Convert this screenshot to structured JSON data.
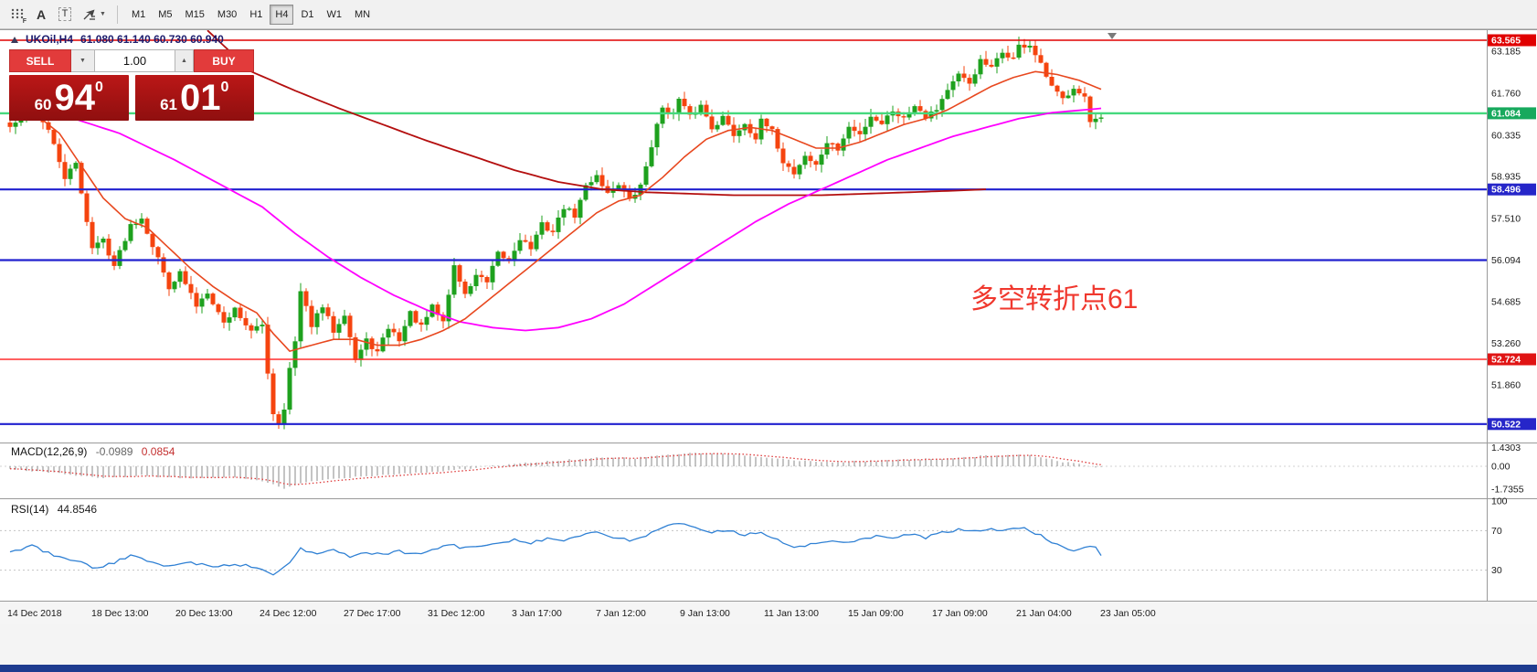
{
  "toolbar": {
    "timeframes": [
      "M1",
      "M5",
      "M15",
      "M30",
      "H1",
      "H4",
      "D1",
      "W1",
      "MN"
    ],
    "selected_timeframe": "H4",
    "icon_a": "A",
    "icon_t": "T",
    "icon_f": "F"
  },
  "chart": {
    "title_symbol": "UKOil,H4",
    "title_ohlc": "61.080 61.140 60.730 60.940",
    "annotation_text": "多空转折点61",
    "annotation_color": "#f0382e"
  },
  "quote_panel": {
    "sell_label": "SELL",
    "buy_label": "BUY",
    "volume": "1.00",
    "sell_price_small": "60",
    "sell_price_big": "94",
    "sell_price_sup": "0",
    "buy_price_small": "61",
    "buy_price_big": "01",
    "buy_price_sup": "0"
  },
  "hlines": [
    {
      "price": 63.565,
      "label": "63.565",
      "color": "#e00000",
      "width": 1.6,
      "badge": "#e00000"
    },
    {
      "price": 61.084,
      "label": "61.084",
      "color": "#45d97e",
      "width": 2.4,
      "badge": "#17a95d"
    },
    {
      "price": 58.496,
      "label": "58.496",
      "color": "#2121cf",
      "width": 2.2,
      "badge": "#2626c9"
    },
    {
      "price": 56.094,
      "label": "56.094",
      "color": "#2121cf",
      "width": 2.2,
      "badge": null
    },
    {
      "price": 52.724,
      "label": "52.724",
      "color": "#ff2d2d",
      "width": 1.4,
      "badge": "#e01414"
    },
    {
      "price": 50.522,
      "label": "50.522",
      "color": "#2121cf",
      "width": 2.2,
      "badge": "#2626c9"
    }
  ],
  "price_axis": {
    "labels": [
      [
        63.185,
        "63.185"
      ],
      [
        61.76,
        "61.760"
      ],
      [
        60.335,
        "60.335"
      ],
      [
        58.935,
        "58.935"
      ],
      [
        57.51,
        "57.510"
      ],
      [
        56.094,
        "56.094"
      ],
      [
        54.685,
        "54.685"
      ],
      [
        53.26,
        "53.260"
      ],
      [
        51.86,
        "51.860"
      ]
    ]
  },
  "chart_data": {
    "type": "candlestick",
    "symbol": "UKOil",
    "timeframe": "H4",
    "last_ohlc": {
      "open": 61.08,
      "high": 61.14,
      "low": 60.73,
      "close": 60.94
    },
    "bars": 200,
    "colors": {
      "bull": "#1ea11e",
      "bear": "#f5440f",
      "ma_fast": "#e8481f",
      "ma_med": "#ff00ff",
      "ma_slow": "#b40f0f"
    },
    "price_path": [
      [
        0,
        60.6
      ],
      [
        2,
        60.95
      ],
      [
        5,
        61.15
      ],
      [
        7,
        60.5
      ],
      [
        10,
        58.9
      ],
      [
        12,
        59.35
      ],
      [
        15,
        56.5
      ],
      [
        17,
        56.8
      ],
      [
        19,
        55.9
      ],
      [
        22,
        57.3
      ],
      [
        24,
        57.55
      ],
      [
        26,
        56.6
      ],
      [
        29,
        55.2
      ],
      [
        31,
        55.65
      ],
      [
        34,
        54.55
      ],
      [
        36,
        55.05
      ],
      [
        39,
        53.95
      ],
      [
        41,
        54.45
      ],
      [
        44,
        53.65
      ],
      [
        46,
        53.9
      ],
      [
        47,
        52.3
      ],
      [
        48,
        50.9
      ],
      [
        49,
        50.55
      ],
      [
        50,
        51.1
      ],
      [
        51,
        52.4
      ],
      [
        52,
        53.3
      ],
      [
        53,
        55.0
      ],
      [
        55,
        53.9
      ],
      [
        57,
        54.5
      ],
      [
        59,
        53.7
      ],
      [
        61,
        54.3
      ],
      [
        63,
        52.7
      ],
      [
        65,
        53.35
      ],
      [
        67,
        52.95
      ],
      [
        69,
        53.8
      ],
      [
        71,
        53.4
      ],
      [
        73,
        54.3
      ],
      [
        75,
        53.8
      ],
      [
        77,
        54.5
      ],
      [
        79,
        54.0
      ],
      [
        81,
        55.9
      ],
      [
        83,
        54.9
      ],
      [
        85,
        55.6
      ],
      [
        87,
        55.3
      ],
      [
        89,
        56.3
      ],
      [
        91,
        56.05
      ],
      [
        93,
        56.85
      ],
      [
        95,
        56.5
      ],
      [
        97,
        57.3
      ],
      [
        99,
        57.05
      ],
      [
        101,
        57.9
      ],
      [
        103,
        57.6
      ],
      [
        105,
        58.6
      ],
      [
        107,
        59.0
      ],
      [
        109,
        58.35
      ],
      [
        111,
        58.7
      ],
      [
        113,
        58.1
      ],
      [
        115,
        58.6
      ],
      [
        117,
        60.0
      ],
      [
        119,
        61.3
      ],
      [
        121,
        61.05
      ],
      [
        122,
        61.55
      ],
      [
        124,
        60.95
      ],
      [
        126,
        61.35
      ],
      [
        128,
        60.6
      ],
      [
        130,
        60.95
      ],
      [
        132,
        60.35
      ],
      [
        134,
        60.75
      ],
      [
        136,
        60.25
      ],
      [
        137,
        60.8
      ],
      [
        139,
        60.45
      ],
      [
        141,
        59.45
      ],
      [
        143,
        59.05
      ],
      [
        145,
        59.65
      ],
      [
        147,
        59.3
      ],
      [
        149,
        60.1
      ],
      [
        151,
        59.85
      ],
      [
        153,
        60.6
      ],
      [
        155,
        60.35
      ],
      [
        157,
        61.0
      ],
      [
        159,
        60.75
      ],
      [
        161,
        61.2
      ],
      [
        163,
        60.9
      ],
      [
        165,
        61.4
      ],
      [
        167,
        61.0
      ],
      [
        169,
        61.25
      ],
      [
        171,
        61.9
      ],
      [
        173,
        62.35
      ],
      [
        175,
        62.1
      ],
      [
        177,
        62.85
      ],
      [
        179,
        62.6
      ],
      [
        181,
        63.15
      ],
      [
        183,
        62.95
      ],
      [
        184,
        63.35
      ],
      [
        186,
        63.4
      ],
      [
        188,
        62.7
      ],
      [
        190,
        61.95
      ],
      [
        192,
        61.55
      ],
      [
        194,
        62.0
      ],
      [
        196,
        61.65
      ],
      [
        197,
        60.75
      ],
      [
        199,
        60.94
      ]
    ],
    "ma_fast": [
      [
        0,
        61.3
      ],
      [
        5,
        61.0
      ],
      [
        9,
        60.4
      ],
      [
        13,
        59.3
      ],
      [
        17,
        58.2
      ],
      [
        21,
        57.5
      ],
      [
        25,
        57.2
      ],
      [
        29,
        56.5
      ],
      [
        33,
        55.8
      ],
      [
        37,
        55.2
      ],
      [
        41,
        54.7
      ],
      [
        45,
        54.3
      ],
      [
        48,
        53.6
      ],
      [
        51,
        53.0
      ],
      [
        55,
        53.2
      ],
      [
        59,
        53.4
      ],
      [
        63,
        53.4
      ],
      [
        67,
        53.2
      ],
      [
        71,
        53.2
      ],
      [
        75,
        53.4
      ],
      [
        79,
        53.7
      ],
      [
        83,
        54.1
      ],
      [
        87,
        54.7
      ],
      [
        91,
        55.3
      ],
      [
        95,
        55.9
      ],
      [
        99,
        56.5
      ],
      [
        103,
        57.1
      ],
      [
        107,
        57.7
      ],
      [
        111,
        58.1
      ],
      [
        115,
        58.3
      ],
      [
        119,
        58.9
      ],
      [
        123,
        59.6
      ],
      [
        127,
        60.2
      ],
      [
        131,
        60.5
      ],
      [
        135,
        60.6
      ],
      [
        139,
        60.5
      ],
      [
        143,
        60.2
      ],
      [
        147,
        59.9
      ],
      [
        151,
        59.9
      ],
      [
        155,
        60.1
      ],
      [
        159,
        60.4
      ],
      [
        163,
        60.7
      ],
      [
        167,
        60.9
      ],
      [
        171,
        61.2
      ],
      [
        175,
        61.6
      ],
      [
        179,
        62.0
      ],
      [
        183,
        62.3
      ],
      [
        187,
        62.5
      ],
      [
        191,
        62.4
      ],
      [
        195,
        62.2
      ],
      [
        199,
        61.9
      ]
    ],
    "ma_med": [
      [
        0,
        61.2
      ],
      [
        10,
        61.0
      ],
      [
        20,
        60.4
      ],
      [
        30,
        59.5
      ],
      [
        40,
        58.5
      ],
      [
        46,
        57.9
      ],
      [
        52,
        57.0
      ],
      [
        58,
        56.2
      ],
      [
        64,
        55.5
      ],
      [
        70,
        54.9
      ],
      [
        76,
        54.4
      ],
      [
        82,
        54.0
      ],
      [
        88,
        53.8
      ],
      [
        94,
        53.7
      ],
      [
        100,
        53.8
      ],
      [
        106,
        54.1
      ],
      [
        112,
        54.6
      ],
      [
        118,
        55.3
      ],
      [
        124,
        56.0
      ],
      [
        130,
        56.7
      ],
      [
        136,
        57.4
      ],
      [
        142,
        58.0
      ],
      [
        148,
        58.5
      ],
      [
        154,
        59.0
      ],
      [
        160,
        59.5
      ],
      [
        166,
        59.9
      ],
      [
        172,
        60.3
      ],
      [
        178,
        60.6
      ],
      [
        184,
        60.9
      ],
      [
        190,
        61.1
      ],
      [
        196,
        61.2
      ],
      [
        199,
        61.25
      ]
    ],
    "ma_slow": [
      [
        36,
        63.9
      ],
      [
        44,
        62.5
      ],
      [
        52,
        61.85
      ],
      [
        60,
        61.25
      ],
      [
        68,
        60.7
      ],
      [
        76,
        60.15
      ],
      [
        84,
        59.65
      ],
      [
        92,
        59.15
      ],
      [
        100,
        58.75
      ],
      [
        108,
        58.5
      ],
      [
        116,
        58.4
      ],
      [
        124,
        58.35
      ],
      [
        132,
        58.3
      ],
      [
        140,
        58.3
      ],
      [
        148,
        58.3
      ],
      [
        156,
        58.35
      ],
      [
        164,
        58.4
      ],
      [
        172,
        58.45
      ],
      [
        178,
        58.5
      ]
    ],
    "macd": {
      "label": "MACD(12,26,9)",
      "value": "-0.0989",
      "signal": "0.0854",
      "axis": [
        [
          1.4303,
          "1.4303"
        ],
        [
          0,
          "0.00"
        ],
        [
          -1.7355,
          "-1.7355"
        ]
      ],
      "hist_color": "#8a8a8a",
      "signal_color": "#de3b3b",
      "hist": [
        [
          0,
          -0.2
        ],
        [
          8,
          -0.5
        ],
        [
          16,
          -0.9
        ],
        [
          24,
          -0.7
        ],
        [
          32,
          -0.9
        ],
        [
          40,
          -0.8
        ],
        [
          46,
          -1.1
        ],
        [
          50,
          -1.7
        ],
        [
          54,
          -1.2
        ],
        [
          60,
          -0.9
        ],
        [
          66,
          -0.7
        ],
        [
          72,
          -0.55
        ],
        [
          78,
          -0.4
        ],
        [
          84,
          -0.15
        ],
        [
          90,
          0.1
        ],
        [
          96,
          0.3
        ],
        [
          102,
          0.5
        ],
        [
          108,
          0.65
        ],
        [
          114,
          0.6
        ],
        [
          120,
          0.9
        ],
        [
          126,
          1.0
        ],
        [
          132,
          0.9
        ],
        [
          138,
          0.7
        ],
        [
          144,
          0.4
        ],
        [
          150,
          0.3
        ],
        [
          156,
          0.4
        ],
        [
          162,
          0.5
        ],
        [
          168,
          0.55
        ],
        [
          174,
          0.7
        ],
        [
          180,
          0.85
        ],
        [
          186,
          0.8
        ],
        [
          190,
          0.5
        ],
        [
          194,
          0.2
        ],
        [
          199,
          -0.1
        ]
      ]
    },
    "rsi": {
      "label": "RSI(14)",
      "value": "44.8546",
      "axis": [
        [
          100,
          "100"
        ],
        [
          70,
          "70"
        ],
        [
          30,
          "30"
        ]
      ],
      "levels": [
        70,
        30
      ],
      "color": "#2f80d4",
      "points": [
        [
          0,
          48
        ],
        [
          4,
          55
        ],
        [
          8,
          45
        ],
        [
          12,
          40
        ],
        [
          15,
          32
        ],
        [
          18,
          36
        ],
        [
          22,
          44
        ],
        [
          25,
          40
        ],
        [
          29,
          34
        ],
        [
          33,
          38
        ],
        [
          37,
          33
        ],
        [
          41,
          36
        ],
        [
          45,
          33
        ],
        [
          48,
          25
        ],
        [
          51,
          38
        ],
        [
          53,
          52
        ],
        [
          56,
          46
        ],
        [
          59,
          50
        ],
        [
          62,
          44
        ],
        [
          65,
          48
        ],
        [
          68,
          45
        ],
        [
          71,
          49
        ],
        [
          74,
          46
        ],
        [
          77,
          50
        ],
        [
          80,
          56
        ],
        [
          83,
          52
        ],
        [
          86,
          55
        ],
        [
          89,
          58
        ],
        [
          92,
          61
        ],
        [
          95,
          58
        ],
        [
          98,
          62
        ],
        [
          101,
          60
        ],
        [
          104,
          65
        ],
        [
          107,
          68
        ],
        [
          110,
          63
        ],
        [
          113,
          60
        ],
        [
          116,
          65
        ],
        [
          119,
          74
        ],
        [
          122,
          77
        ],
        [
          125,
          72
        ],
        [
          128,
          68
        ],
        [
          131,
          71
        ],
        [
          134,
          66
        ],
        [
          137,
          69
        ],
        [
          140,
          60
        ],
        [
          143,
          52
        ],
        [
          146,
          56
        ],
        [
          149,
          60
        ],
        [
          152,
          57
        ],
        [
          155,
          61
        ],
        [
          158,
          64
        ],
        [
          161,
          62
        ],
        [
          164,
          66
        ],
        [
          167,
          63
        ],
        [
          170,
          68
        ],
        [
          173,
          71
        ],
        [
          176,
          69
        ],
        [
          179,
          72
        ],
        [
          182,
          70
        ],
        [
          185,
          73
        ],
        [
          188,
          65
        ],
        [
          191,
          55
        ],
        [
          194,
          50
        ],
        [
          196,
          54
        ],
        [
          198,
          52
        ],
        [
          199,
          44.85
        ]
      ]
    },
    "time_labels": [
      "14 Dec 2018",
      "18 Dec 13:00",
      "20 Dec 13:00",
      "24 Dec 12:00",
      "27 Dec 17:00",
      "31 Dec 12:00",
      "3 Jan 17:00",
      "7 Jan 12:00",
      "9 Jan 13:00",
      "11 Jan 13:00",
      "15 Jan 09:00",
      "17 Jan 09:00",
      "21 Jan 04:00",
      "23 Jan 05:00"
    ]
  }
}
